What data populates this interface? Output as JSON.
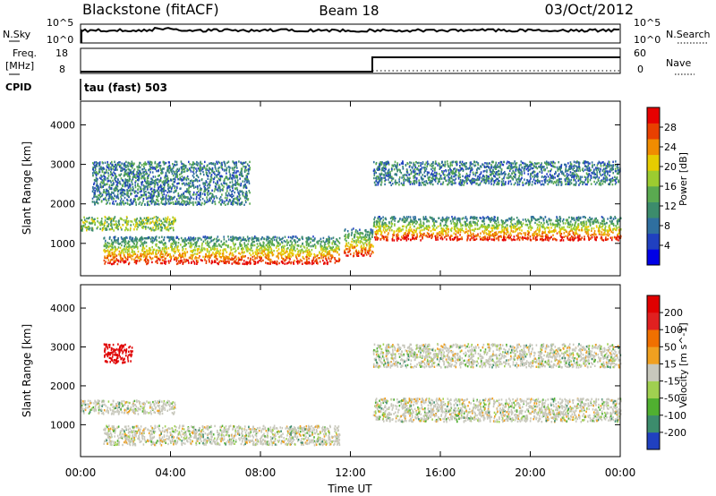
{
  "header": {
    "title": "Blackstone (fitACF)",
    "beam": "Beam 18",
    "date": "03/Oct/2012"
  },
  "noise_panel": {
    "left_label": "N.Sky",
    "left_ticks": [
      "10^5",
      "10^0"
    ],
    "right_label": "N.Search",
    "right_ticks": [
      "10^5",
      "10^0"
    ]
  },
  "freq_panel": {
    "left_label_1": "Freq.",
    "left_label_2": "[MHz]",
    "left_ticks": [
      "18",
      "8"
    ],
    "right_label": "Nave",
    "right_ticks": [
      "60",
      "0"
    ]
  },
  "cpid": {
    "label": "CPID",
    "mode": "tau (fast) 503"
  },
  "chart_data": [
    {
      "type": "heatmap",
      "name": "power",
      "ylabel": "Slant Range [km]",
      "xlabel": "",
      "x_range_hours": [
        0,
        24
      ],
      "ylim": [
        180,
        4600
      ],
      "yticks": [
        "1000",
        "2000",
        "3000",
        "4000"
      ],
      "colorbar": {
        "label": "Power [dB]",
        "ticks": [
          "4",
          "8",
          "12",
          "16",
          "20",
          "24",
          "28"
        ],
        "colors": [
          "#0000e6",
          "#2040c0",
          "#2f6f9f",
          "#3c8c6c",
          "#5aaa50",
          "#9ccc30",
          "#e6cc00",
          "#f08c00",
          "#e84000",
          "#e60000"
        ]
      },
      "regions": [
        {
          "t0": 0.0,
          "t1": 4.2,
          "r0": 1350,
          "r1": 1700,
          "level": "medium"
        },
        {
          "t0": 1.0,
          "t1": 11.5,
          "r0": 500,
          "r1": 1200,
          "level": "high"
        },
        {
          "t0": 0.5,
          "t1": 7.5,
          "r0": 2000,
          "r1": 3100,
          "level": "low"
        },
        {
          "t0": 11.7,
          "t1": 13.0,
          "r0": 700,
          "r1": 1400,
          "level": "high"
        },
        {
          "t0": 13.0,
          "t1": 24.0,
          "r0": 1100,
          "r1": 1700,
          "level": "high"
        },
        {
          "t0": 13.0,
          "t1": 24.0,
          "r0": 2500,
          "r1": 3100,
          "level": "low"
        }
      ]
    },
    {
      "type": "heatmap",
      "name": "velocity",
      "ylabel": "Slant Range [km]",
      "xlabel": "Time UT",
      "x_range_hours": [
        0,
        24
      ],
      "xticks": [
        "00:00",
        "04:00",
        "08:00",
        "12:00",
        "16:00",
        "20:00",
        "00:00"
      ],
      "ylim": [
        180,
        4600
      ],
      "yticks": [
        "1000",
        "2000",
        "3000",
        "4000"
      ],
      "colorbar": {
        "label": "Velocity [m s^-1]",
        "ticks": [
          "200",
          "100",
          "50",
          "15",
          "-15",
          "-50",
          "-100",
          "-200"
        ],
        "colors": [
          "#2040c0",
          "#3c8c6c",
          "#50b030",
          "#a0d050",
          "#c8c8bc",
          "#f0a020",
          "#f07000",
          "#e02020",
          "#e00000"
        ]
      },
      "regions": [
        {
          "t0": 0.0,
          "t1": 4.2,
          "r0": 1300,
          "r1": 1650,
          "level": "ground"
        },
        {
          "t0": 1.0,
          "t1": 11.5,
          "r0": 500,
          "r1": 1000,
          "level": "ground"
        },
        {
          "t0": 1.0,
          "t1": 2.3,
          "r0": 2600,
          "r1": 3100,
          "level": "red"
        },
        {
          "t0": 13.0,
          "t1": 24.0,
          "r0": 1100,
          "r1": 1700,
          "level": "ground"
        },
        {
          "t0": 13.0,
          "t1": 24.0,
          "r0": 2500,
          "r1": 3100,
          "level": "ground"
        }
      ]
    }
  ]
}
